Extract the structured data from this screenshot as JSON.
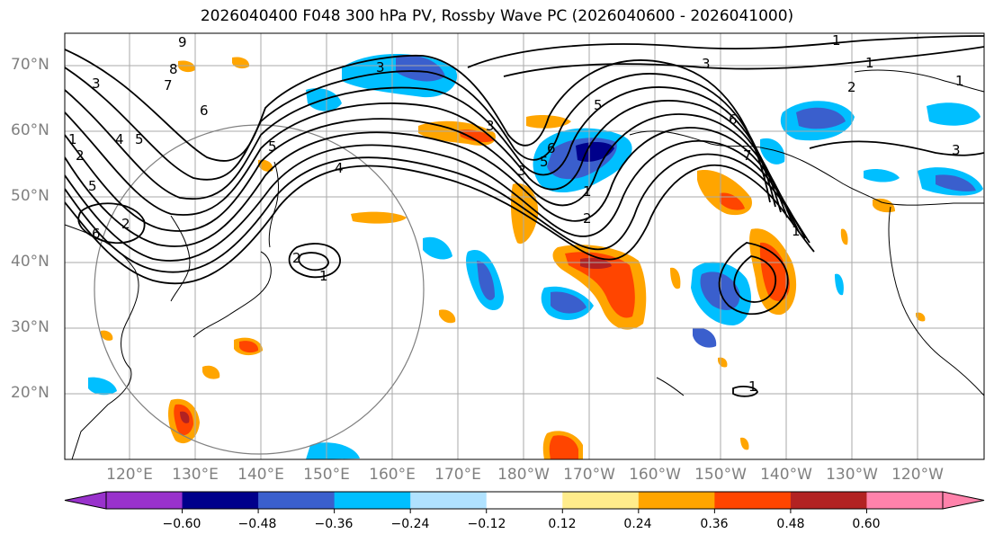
{
  "title": "2026040400 F048 300 hPa PV, Rossby Wave PC (2026040600 - 2026041000)",
  "lat_labels": [
    "70°N",
    "60°N",
    "50°N",
    "40°N",
    "30°N",
    "20°N"
  ],
  "lon_labels": [
    "120°E",
    "130°E",
    "140°E",
    "150°E",
    "160°E",
    "170°E",
    "180°W",
    "170°W",
    "160°W",
    "150°W",
    "140°W",
    "130°W",
    "120°W"
  ],
  "colorbar": {
    "tick_labels": [
      "−0.60",
      "−0.48",
      "−0.36",
      "−0.24",
      "−0.12",
      "0.12",
      "0.24",
      "0.36",
      "0.48",
      "0.60"
    ],
    "colors": [
      "#9932cc",
      "#00008b",
      "#3a5fcd",
      "#00bfff",
      "#b0e2ff",
      "#ffffff",
      "#ffec8b",
      "#ffa500",
      "#ff4500",
      "#b22222",
      "#ff82ab"
    ]
  },
  "contour_labels": [
    "9",
    "8",
    "7",
    "6",
    "5",
    "4",
    "3",
    "2",
    "1",
    "3",
    "4",
    "5",
    "6",
    "5",
    "1",
    "2",
    "3",
    "6",
    "7",
    "3",
    "1",
    "2",
    "5",
    "1",
    "5",
    "6",
    "2",
    "1",
    "3",
    "2",
    "1",
    "1",
    "1",
    "3"
  ],
  "colors": {
    "contour": "#000000",
    "grid": "#aaaaaa",
    "circle": "#808080",
    "coast": "#000000"
  }
}
